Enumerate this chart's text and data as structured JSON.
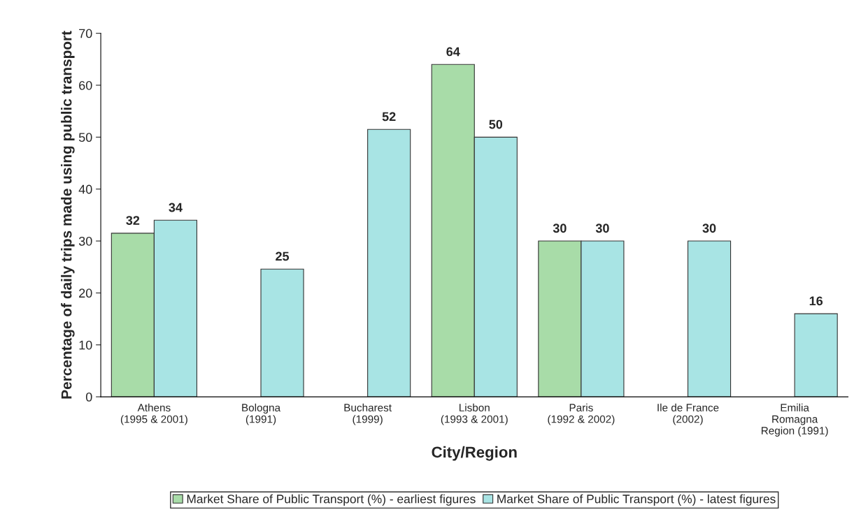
{
  "chart_data": {
    "type": "bar",
    "xlabel": "City/Region",
    "ylabel": "Percentage of daily trips made using public transport",
    "categories": [
      "Athens\n(1995 & 2001)",
      "Bologna\n(1991)",
      "Bucharest\n(1999)",
      "Lisbon\n(1993 & 2001)",
      "Paris\n(1992 & 2002)",
      "Ile de France\n(2002)",
      "Emilia\nRomagna\nRegion (1991)"
    ],
    "series": [
      {
        "name": "Market Share of Public Transport (%) - earliest figures",
        "color": "#a8dca8",
        "values": [
          31.5,
          null,
          null,
          64,
          30,
          null,
          null
        ],
        "value_labels": [
          "32",
          null,
          null,
          "64",
          "30",
          null,
          null
        ]
      },
      {
        "name": "Market Share of Public Transport (%) - latest figures",
        "color": "#a8e4e4",
        "values": [
          34,
          24.6,
          51.5,
          50,
          30,
          30,
          16
        ],
        "value_labels": [
          "34",
          "25",
          "52",
          "50",
          "30",
          "30",
          "16"
        ]
      }
    ],
    "ylim": [
      0,
      70
    ],
    "yticks": [
      0,
      10,
      20,
      30,
      40,
      50,
      60,
      70
    ],
    "grid": false,
    "legend": "bottom"
  }
}
